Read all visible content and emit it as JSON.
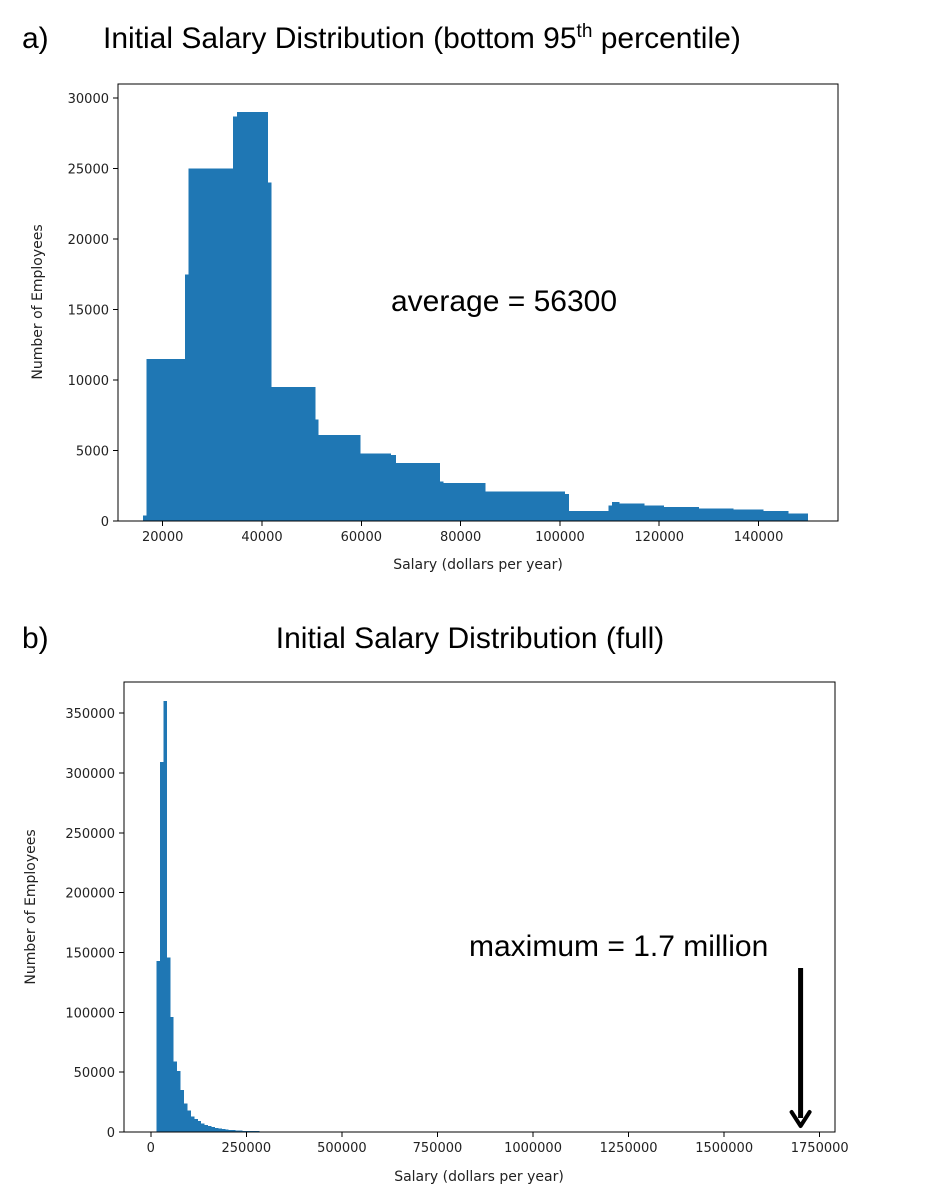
{
  "colors": {
    "bar": "#1f77b4",
    "axis": "#000000",
    "text": "#000000",
    "arrow": "#000000"
  },
  "chart_data": [
    {
      "type": "bar",
      "panel_label": "a)",
      "title_main": "Initial Salary Distribution (bottom 95",
      "title_superscript": "th",
      "title_end": " percentile)",
      "xlabel": "Salary (dollars per year)",
      "ylabel": "Number of Employees",
      "xlim": [
        11000,
        156000
      ],
      "ylim": [
        0,
        31000
      ],
      "xticks": [
        20000,
        40000,
        60000,
        80000,
        100000,
        120000,
        140000
      ],
      "xtick_labels": [
        "20000",
        "40000",
        "60000",
        "80000",
        "100000",
        "120000",
        "140000"
      ],
      "yticks": [
        0,
        5000,
        10000,
        15000,
        20000,
        25000,
        30000
      ],
      "ytick_labels": [
        "0",
        "5000",
        "10000",
        "15000",
        "20000",
        "25000",
        "30000"
      ],
      "bins": [
        [
          16000,
          16700,
          400
        ],
        [
          16700,
          17000,
          11500
        ],
        [
          17000,
          24500,
          11500
        ],
        [
          24500,
          25200,
          17500
        ],
        [
          25200,
          32000,
          25000
        ],
        [
          32000,
          34200,
          25000
        ],
        [
          34200,
          35000,
          28700
        ],
        [
          35000,
          41200,
          29000
        ],
        [
          41200,
          41900,
          24000
        ],
        [
          41900,
          50800,
          9500
        ],
        [
          50800,
          51400,
          7200
        ],
        [
          51400,
          59800,
          6100
        ],
        [
          59800,
          66000,
          4800
        ],
        [
          66000,
          67000,
          4700
        ],
        [
          67000,
          75800,
          4100
        ],
        [
          75800,
          76500,
          2800
        ],
        [
          76500,
          84000,
          2700
        ],
        [
          84000,
          85000,
          2700
        ],
        [
          85000,
          101000,
          2100
        ],
        [
          101000,
          101800,
          1900
        ],
        [
          101800,
          109800,
          700
        ],
        [
          109800,
          110500,
          1100
        ],
        [
          110500,
          112000,
          1350
        ],
        [
          112000,
          117000,
          1250
        ],
        [
          117000,
          121000,
          1100
        ],
        [
          121000,
          128000,
          1000
        ],
        [
          128000,
          135000,
          900
        ],
        [
          135000,
          141000,
          800
        ],
        [
          141000,
          146000,
          700
        ],
        [
          146000,
          150000,
          550
        ]
      ],
      "annotation_text": "average = 56300"
    },
    {
      "type": "bar",
      "panel_label": "b)",
      "title": "Initial Salary Distribution (full)",
      "xlabel": "Salary (dollars per year)",
      "ylabel": "Number of Employees",
      "xlim": [
        -70000,
        1790000
      ],
      "ylim": [
        0,
        376000
      ],
      "xticks": [
        0,
        250000,
        500000,
        750000,
        1000000,
        1250000,
        1500000,
        1750000
      ],
      "xtick_labels": [
        "0",
        "250000",
        "500000",
        "750000",
        "1000000",
        "1250000",
        "1500000",
        "1750000"
      ],
      "yticks": [
        0,
        50000,
        100000,
        150000,
        200000,
        250000,
        300000,
        350000
      ],
      "ytick_labels": [
        "0",
        "50000",
        "100000",
        "150000",
        "200000",
        "250000",
        "300000",
        "350000"
      ],
      "bins": [
        [
          15000,
          24000,
          143000
        ],
        [
          24000,
          33000,
          309000
        ],
        [
          33000,
          42000,
          360000
        ],
        [
          42000,
          51000,
          146000
        ],
        [
          51000,
          60000,
          96000
        ],
        [
          60000,
          69000,
          59000
        ],
        [
          69000,
          78000,
          51000
        ],
        [
          78000,
          87000,
          35000
        ],
        [
          87000,
          96000,
          24000
        ],
        [
          96000,
          105000,
          18000
        ],
        [
          105000,
          114000,
          13000
        ],
        [
          114000,
          123000,
          11000
        ],
        [
          123000,
          132000,
          9000
        ],
        [
          132000,
          141000,
          7000
        ],
        [
          141000,
          150000,
          6000
        ],
        [
          150000,
          159000,
          5000
        ],
        [
          159000,
          168000,
          4000
        ],
        [
          168000,
          177000,
          3500
        ],
        [
          177000,
          186000,
          3000
        ],
        [
          186000,
          195000,
          2500
        ],
        [
          195000,
          204000,
          2000
        ],
        [
          204000,
          213000,
          1800
        ],
        [
          213000,
          222000,
          1500
        ],
        [
          222000,
          240000,
          1200
        ],
        [
          240000,
          260000,
          1000
        ],
        [
          260000,
          285000,
          800
        ]
      ],
      "annotation_text": "maximum =  1.7 million",
      "arrow_target_x": 1700000
    }
  ]
}
